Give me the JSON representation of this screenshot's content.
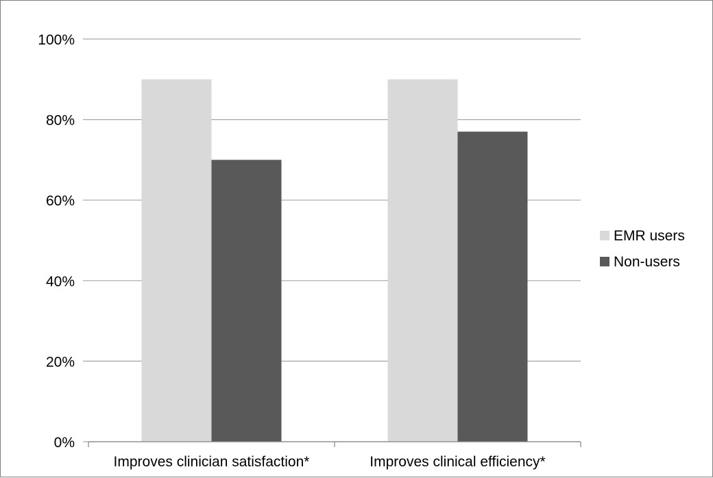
{
  "chart_data": {
    "type": "bar",
    "categories": [
      "Improves clinician satisfaction*",
      "Improves clinical efficiency*"
    ],
    "series": [
      {
        "name": "EMR users",
        "values": [
          90,
          90
        ],
        "color": "#d9d9d9"
      },
      {
        "name": "Non-users",
        "values": [
          70,
          77
        ],
        "color": "#595959"
      }
    ],
    "yticks": [
      "0%",
      "20%",
      "40%",
      "60%",
      "80%",
      "100%"
    ],
    "ylim": [
      0,
      100
    ],
    "grid": true,
    "legend": "right",
    "gridColor": "#a6a6a6"
  }
}
